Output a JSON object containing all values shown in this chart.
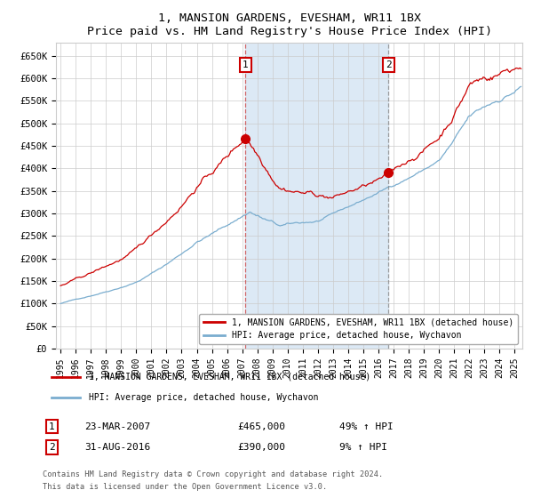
{
  "title": "1, MANSION GARDENS, EVESHAM, WR11 1BX",
  "subtitle": "Price paid vs. HM Land Registry's House Price Index (HPI)",
  "red_line_color": "#cc0000",
  "blue_line_color": "#7aadcf",
  "shade_color": "#dce9f5",
  "grid_color": "#cccccc",
  "background_color": "#ffffff",
  "point1": {
    "date_str": "23-MAR-2007",
    "date_x": 2007.22,
    "price": 465000,
    "label": "1",
    "pct": "49%",
    "direction": "↑"
  },
  "point2": {
    "date_str": "31-AUG-2016",
    "date_x": 2016.67,
    "price": 390000,
    "label": "2",
    "pct": "9%",
    "direction": "↑"
  },
  "x_start": 1994.7,
  "x_end": 2025.5,
  "y_ticks": [
    0,
    50000,
    100000,
    150000,
    200000,
    250000,
    300000,
    350000,
    400000,
    450000,
    500000,
    550000,
    600000,
    650000
  ],
  "y_tick_labels": [
    "£0",
    "£50K",
    "£100K",
    "£150K",
    "£200K",
    "£250K",
    "£300K",
    "£350K",
    "£400K",
    "£450K",
    "£500K",
    "£550K",
    "£600K",
    "£650K"
  ],
  "x_tick_years": [
    1995,
    1996,
    1997,
    1998,
    1999,
    2000,
    2001,
    2002,
    2003,
    2004,
    2005,
    2006,
    2007,
    2008,
    2009,
    2010,
    2011,
    2012,
    2013,
    2014,
    2015,
    2016,
    2017,
    2018,
    2019,
    2020,
    2021,
    2022,
    2023,
    2024,
    2025
  ],
  "legend_entries": [
    "1, MANSION GARDENS, EVESHAM, WR11 1BX (detached house)",
    "HPI: Average price, detached house, Wychavon"
  ],
  "footnote1": "Contains HM Land Registry data © Crown copyright and database right 2024.",
  "footnote2": "This data is licensed under the Open Government Licence v3.0.",
  "annotation_box_color": "#cc0000"
}
